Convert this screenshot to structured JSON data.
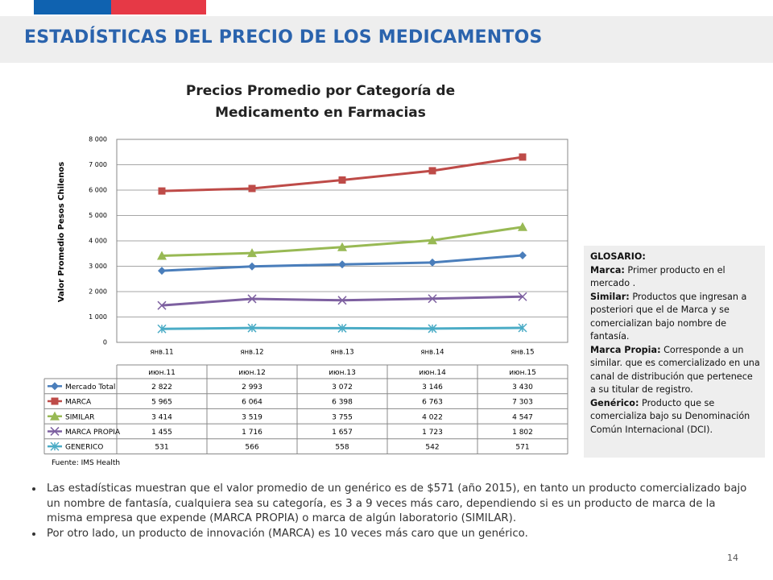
{
  "header": {
    "title": "ESTADÍSTICAS DEL PRECIO DE LOS MEDICAMENTOS"
  },
  "chart_data": {
    "type": "line",
    "title": "Precios Promedio por Categoría de Medicamento en Farmacias",
    "y_label": "Valor Promedio Pesos Chilenos",
    "categories": [
      "янв.11",
      "янв.12",
      "янв.13",
      "янв.14",
      "янв.15"
    ],
    "table_categories": [
      "июн.11",
      "июн.12",
      "июн.13",
      "июн.14",
      "июн.15"
    ],
    "ylim": [
      0,
      8000
    ],
    "yticks": [
      0,
      {
        "value": 1000,
        "label": "1 000"
      },
      {
        "value": 2000,
        "label": "2 000"
      },
      {
        "value": 3000,
        "label": "3 000"
      },
      {
        "value": 4000,
        "label": "4 000"
      },
      {
        "value": 5000,
        "label": "5 000"
      },
      {
        "value": 6000,
        "label": "6 000"
      },
      {
        "value": 7000,
        "label": "7 000"
      },
      {
        "value": 8000,
        "label": "8 000"
      }
    ],
    "grid": true,
    "series": [
      {
        "name": "Mercado Total",
        "color": "#4a7ebb",
        "marker": "diamond",
        "values": [
          2822,
          2993,
          3072,
          3146,
          3430
        ],
        "value_labels": [
          "2 822",
          "2 993",
          "3 072",
          "3 146",
          "3 430"
        ]
      },
      {
        "name": "MARCA",
        "color": "#be4b48",
        "marker": "square",
        "values": [
          5965,
          6064,
          6398,
          6763,
          7303
        ],
        "value_labels": [
          "5 965",
          "6 064",
          "6 398",
          "6 763",
          "7 303"
        ]
      },
      {
        "name": "SIMILAR",
        "color": "#98b954",
        "marker": "triangle",
        "values": [
          3414,
          3519,
          3755,
          4022,
          4547
        ],
        "value_labels": [
          "3 414",
          "3 519",
          "3 755",
          "4 022",
          "4 547"
        ]
      },
      {
        "name": "MARCA PROPIA",
        "color": "#7d60a0",
        "marker": "x",
        "values": [
          1455,
          1716,
          1657,
          1723,
          1802
        ],
        "value_labels": [
          "1 455",
          "1 716",
          "1 657",
          "1 723",
          "1 802"
        ]
      },
      {
        "name": "GENERICO",
        "color": "#4bacc6",
        "marker": "star",
        "values": [
          531,
          566,
          558,
          542,
          571
        ]
      }
    ],
    "source": "Fuente: IMS Health"
  },
  "glossary": {
    "title": "GLOSARIO:",
    "entries": [
      {
        "term": "Marca:",
        "text": "Primer producto en el mercado ."
      },
      {
        "term": "Similar:",
        "text": "Productos que ingresan a posteriori que el de Marca y se comercializan bajo nombre de fantasía."
      },
      {
        "term": "Marca Propia:",
        "text": "Corresponde a un similar. que es comercializado en una canal de distribución que pertenece a su titular de registro."
      },
      {
        "term": "Genérico:",
        "text": "Producto que se comercializa bajo su Denominación Común Internacional (DCI)."
      }
    ]
  },
  "bullets": [
    "Las estadísticas muestran que el valor promedio de un genérico es de $571 (año 2015), en tanto un producto comercializado bajo un nombre de fantasía, cualquiera sea su categoría, es 3 a 9 veces más caro, dependiendo si es un producto de marca de la misma empresa que expende (MARCA PROPIA) o marca de algún laboratorio (SIMILAR).",
    "Por otro lado, un producto de innovación (MARCA) es 10 veces más caro que un genérico."
  ],
  "page_number": "14"
}
